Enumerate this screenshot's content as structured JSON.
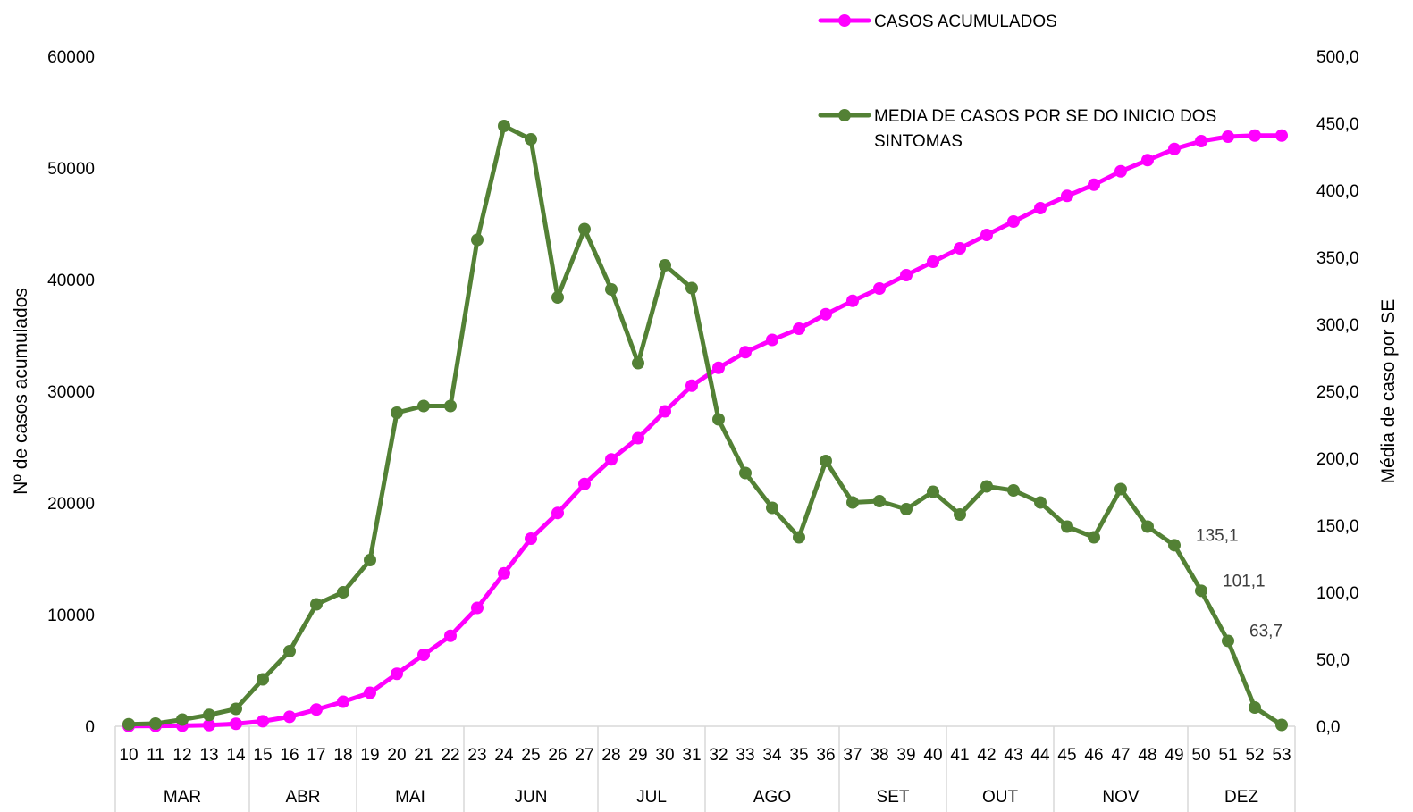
{
  "chart_data": {
    "type": "line",
    "title": "",
    "xlabel": "",
    "ylabel": "Nº de casos acumulados",
    "y2label": "Média de caso por SE",
    "ylim": [
      0,
      60000
    ],
    "y2lim": [
      0,
      500
    ],
    "yticks": [
      "0",
      "10000",
      "20000",
      "30000",
      "40000",
      "50000",
      "60000"
    ],
    "y2ticks": [
      "0,0",
      "50,0",
      "100,0",
      "150,0",
      "200,0",
      "250,0",
      "300,0",
      "350,0",
      "400,0",
      "450,0",
      "500,0"
    ],
    "weeks": [
      "10",
      "11",
      "12",
      "13",
      "14",
      "15",
      "16",
      "17",
      "18",
      "19",
      "20",
      "21",
      "22",
      "23",
      "24",
      "25",
      "26",
      "27",
      "28",
      "29",
      "30",
      "31",
      "32",
      "33",
      "34",
      "35",
      "36",
      "37",
      "38",
      "39",
      "40",
      "41",
      "42",
      "43",
      "44",
      "45",
      "46",
      "47",
      "48",
      "49",
      "50",
      "51",
      "52",
      "53"
    ],
    "months": [
      {
        "label": "MAR",
        "start": 0,
        "end": 4
      },
      {
        "label": "ABR",
        "start": 5,
        "end": 8
      },
      {
        "label": "MAI",
        "start": 9,
        "end": 12
      },
      {
        "label": "JUN",
        "start": 13,
        "end": 17
      },
      {
        "label": "JUL",
        "start": 18,
        "end": 21
      },
      {
        "label": "AGO",
        "start": 22,
        "end": 26
      },
      {
        "label": "SET",
        "start": 27,
        "end": 30
      },
      {
        "label": "OUT",
        "start": 31,
        "end": 34
      },
      {
        "label": "NOV",
        "start": 35,
        "end": 39
      },
      {
        "label": "DEZ",
        "start": 40,
        "end": 43
      }
    ],
    "legend_position": "top-right",
    "grid": false,
    "series": [
      {
        "name": "CASOS ACUMULADOS",
        "axis": "left",
        "color": "#ff00ff",
        "values": [
          20,
          30,
          50,
          100,
          220,
          450,
          850,
          1500,
          2200,
          3000,
          4700,
          6400,
          8100,
          10600,
          13700,
          16800,
          19100,
          21700,
          23900,
          25800,
          28200,
          30500,
          32100,
          33500,
          34600,
          35600,
          36900,
          38100,
          39200,
          40400,
          41600,
          42800,
          44000,
          45200,
          46400,
          47500,
          48500,
          49700,
          50700,
          51700,
          52400,
          52800,
          52900,
          52900
        ]
      },
      {
        "name": "MEDIA DE CASOS POR SE DO INICIO DOS SINTOMAS",
        "axis": "right",
        "color": "#538135",
        "values": [
          1.5,
          2.0,
          5.0,
          8.5,
          13.0,
          35.0,
          56.0,
          91.0,
          100.0,
          124.0,
          234.0,
          239.0,
          239.0,
          363.0,
          448.0,
          438.0,
          320.0,
          371.0,
          326.0,
          271.0,
          344.0,
          327.0,
          229.0,
          189.0,
          163.0,
          141.0,
          198.0,
          167.0,
          168.0,
          162.0,
          175.0,
          158.0,
          179.0,
          176.0,
          167.0,
          149.0,
          141.0,
          177.0,
          149.0,
          135.1,
          101.1,
          63.7,
          14.0,
          1.0
        ],
        "data_labels": [
          {
            "index": 39,
            "text": "135,1"
          },
          {
            "index": 40,
            "text": "101,1"
          },
          {
            "index": 41,
            "text": "63,7"
          }
        ]
      }
    ]
  }
}
